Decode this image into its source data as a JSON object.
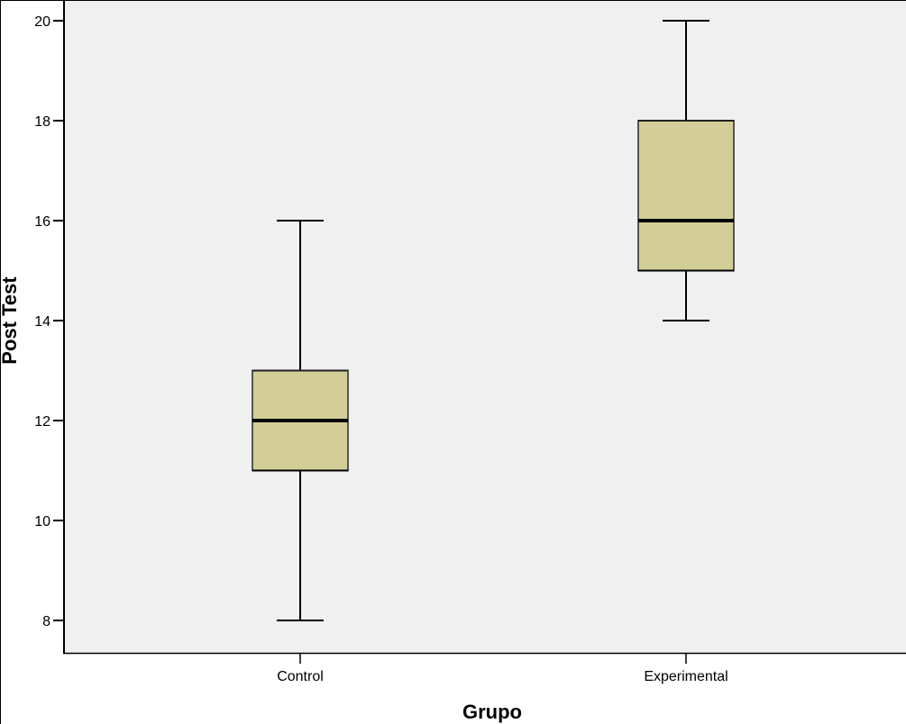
{
  "chart_data": {
    "type": "boxplot",
    "title": "",
    "xlabel": "Grupo",
    "ylabel": "Post Test",
    "categories": [
      "Control",
      "Experimental"
    ],
    "series": [
      {
        "name": "Control",
        "min": 8,
        "q1": 11,
        "median": 12,
        "q3": 13,
        "max": 16
      },
      {
        "name": "Experimental",
        "min": 14,
        "q1": 15,
        "median": 16,
        "q3": 18,
        "max": 20
      }
    ],
    "yticks": [
      8,
      10,
      12,
      14,
      16,
      18,
      20
    ],
    "ylim": [
      7.6,
      20.4
    ],
    "grid": false,
    "legend": null
  },
  "colors": {
    "plot_background": "#f0f0f0",
    "box_fill": "#d3ce98",
    "box_edge": "#555555",
    "median_line": "#000000",
    "axis": "#000000"
  },
  "labels": {
    "x_axis_title": "Grupo",
    "y_axis_title": "Post Test",
    "x_tick_0": "Control",
    "x_tick_1": "Experimental"
  }
}
